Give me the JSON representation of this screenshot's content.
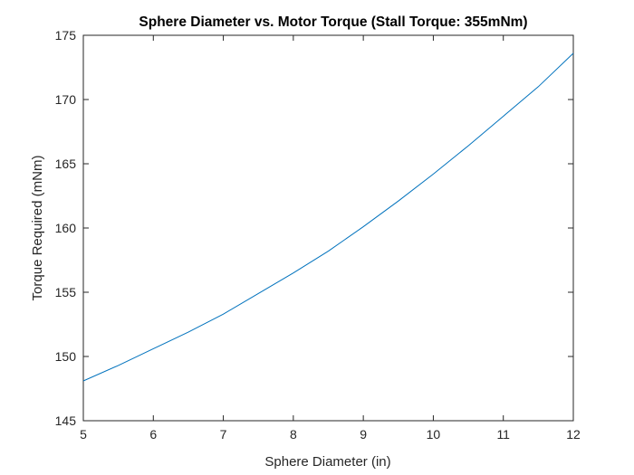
{
  "chart_data": {
    "type": "line",
    "title": "Sphere Diameter vs. Motor Torque (Stall Torque: 355mNm)",
    "xlabel": "Sphere Diameter (in)",
    "ylabel": "Torque Required (mNm)",
    "xlim": [
      5,
      12
    ],
    "ylim": [
      145,
      175
    ],
    "xticks": [
      5,
      6,
      7,
      8,
      9,
      10,
      11,
      12
    ],
    "yticks": [
      145,
      150,
      155,
      160,
      165,
      170,
      175
    ],
    "grid": false,
    "line_color": "#0072BD",
    "series": [
      {
        "x": [
          5,
          5.5,
          6,
          6.5,
          7,
          7.5,
          8,
          8.5,
          9,
          9.5,
          10,
          10.5,
          11,
          11.5,
          12
        ],
        "y": [
          148.1,
          149.3,
          150.6,
          151.9,
          153.3,
          154.9,
          156.5,
          158.2,
          160.1,
          162.1,
          164.2,
          166.4,
          168.7,
          171.0,
          173.6
        ]
      }
    ]
  }
}
